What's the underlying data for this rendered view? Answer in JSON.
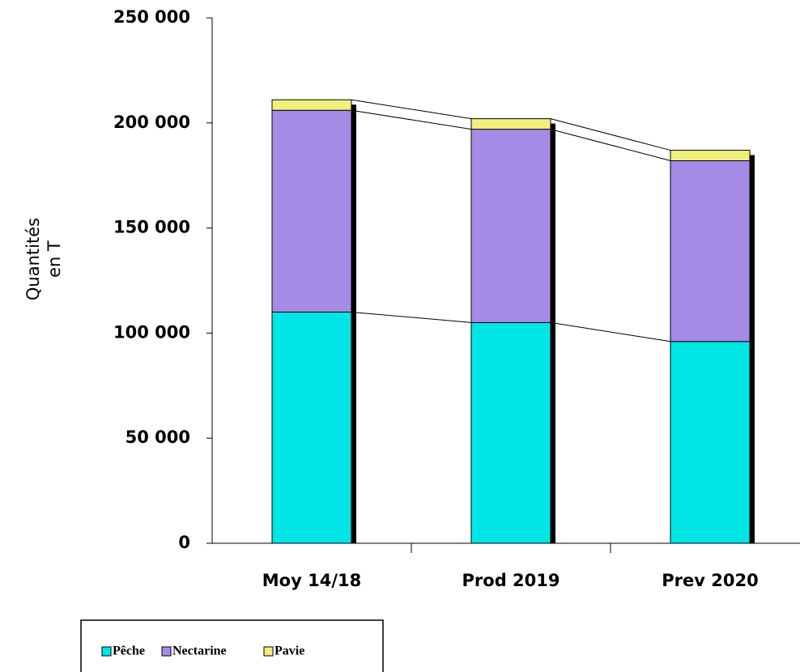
{
  "chart_data": {
    "type": "stacked_bar",
    "y_label": [
      "Quantités",
      "en T"
    ],
    "categories": [
      "Moy 14/18",
      "Prod 2019",
      "Prev 2020"
    ],
    "series": [
      {
        "name": "Pêche",
        "color": "#00e6e6",
        "values": [
          110000,
          105000,
          96000
        ]
      },
      {
        "name": "Nectarine",
        "color": "#a58be6",
        "values": [
          96000,
          92000,
          86000
        ]
      },
      {
        "name": "Pavie",
        "color": "#f0f07c",
        "values": [
          5000,
          5000,
          5000
        ]
      }
    ],
    "ylim": [
      0,
      250000
    ],
    "yticks": [
      0,
      {
        "value": 50000,
        "label": "50 000"
      },
      {
        "value": 100000,
        "label": "100 000"
      },
      {
        "value": 150000,
        "label": "150 000"
      },
      {
        "value": 200000,
        "label": "200 000"
      },
      {
        "value": 250000,
        "label": "250 000"
      }
    ]
  }
}
